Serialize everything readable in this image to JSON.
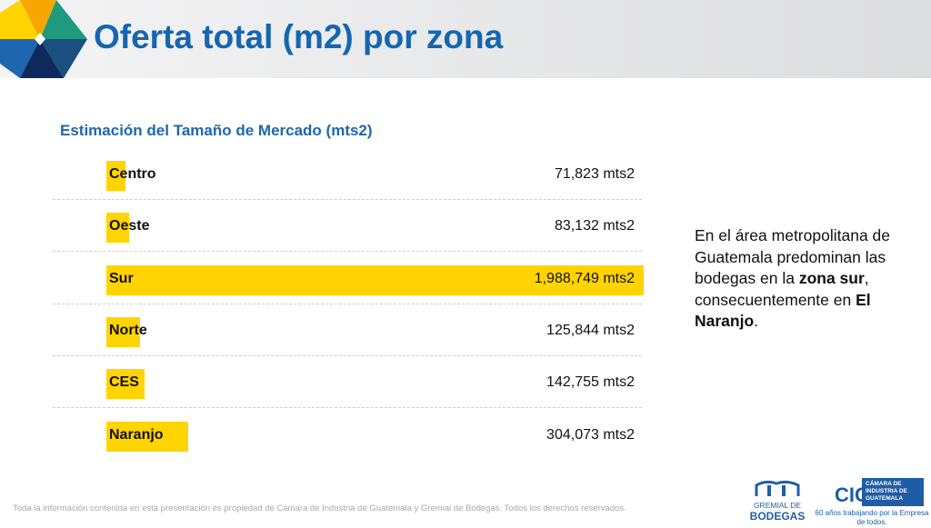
{
  "header": {
    "title": "Oferta total (m2) por zona"
  },
  "chart_data": {
    "type": "bar",
    "orientation": "horizontal",
    "title": "Estimación del Tamaño de Mercado (mts2)",
    "categories": [
      "Centro",
      "Oeste",
      "Sur",
      "Norte",
      "CES",
      "Naranjo"
    ],
    "values": [
      71823,
      83132,
      1988749,
      125844,
      142755,
      304073
    ],
    "data_labels": [
      "71,823 mts2",
      "83,132 mts2",
      "1,988,749 mts2",
      "125,844 mts2",
      "142,755 mts2",
      "304,073 mts2"
    ],
    "bar_color": "#ffd400"
  },
  "side_text": {
    "p1": "En el área metropolitana de Guatemala predominan las bodegas en la ",
    "b1": "zona sur",
    "p2": ", consecuentemente en ",
    "b2": "El Naranjo",
    "p3": "."
  },
  "footer": "Toda la información contenida en esta presentación es propiedad de Cámara de Industria de Guatemala y Gremial de Bodegas. Todos los derechos reservados.",
  "logos": {
    "gremial_line1": "GREMIAL DE",
    "gremial_line2": "BODEGAS",
    "cig_box": "CÁMARA DE INDUSTRIA DE GUATEMALA",
    "cig_letters": "CIG",
    "cig_tagline": "60 años trabajando por la Empresa de todos."
  }
}
